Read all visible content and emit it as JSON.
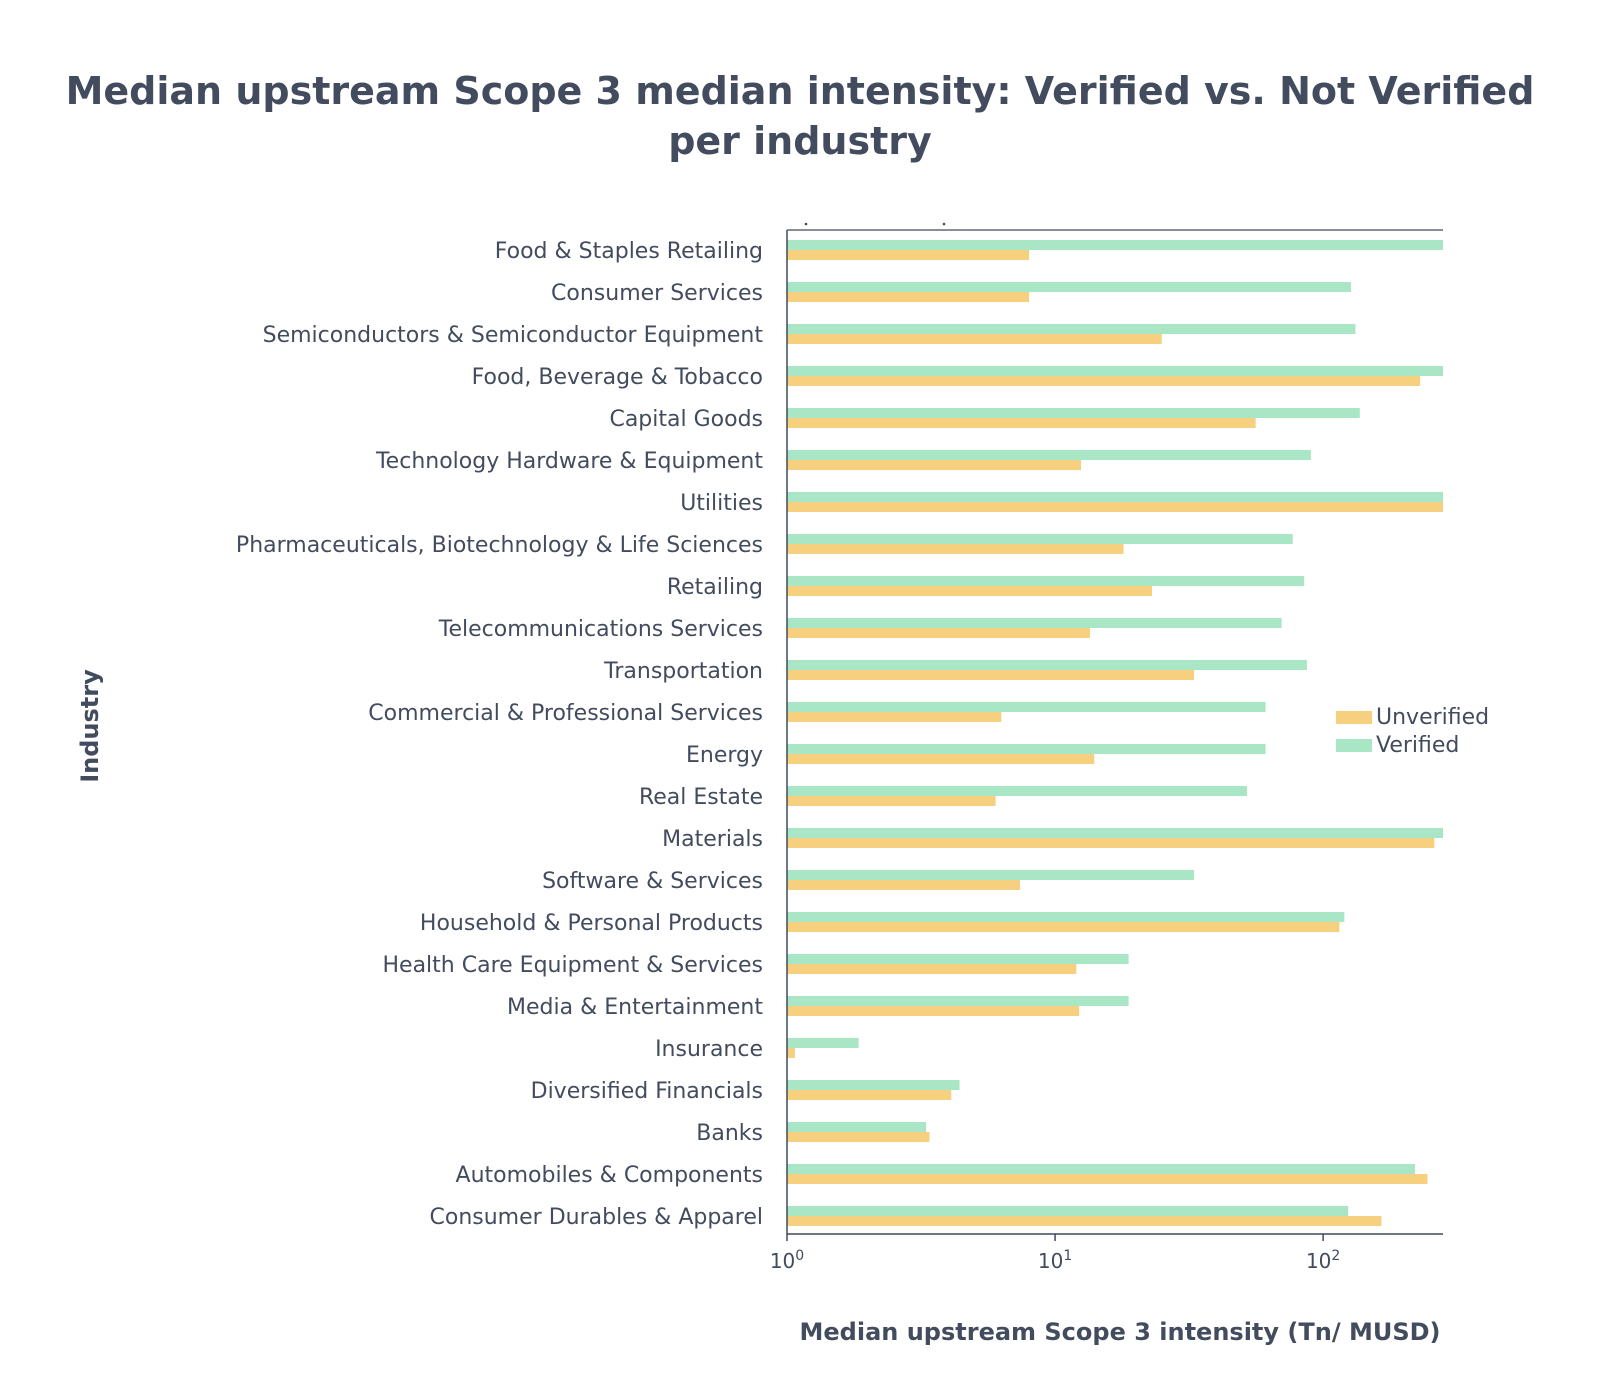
{
  "chart_data": {
    "type": "bar",
    "orientation": "horizontal",
    "title": "Median upstream Scope 3 median intensity: Verified vs. Not Verified per industry",
    "title_lines": [
      "Median upstream Scope 3 median intensity: Verified vs. Not Verified",
      "per industry"
    ],
    "xlabel": "Median upstream Scope 3 intensity (Tn/ MUSD)",
    "ylabel": "Industry",
    "x_scale": "log",
    "xlim": [
      1,
      280
    ],
    "x_ticks": [
      {
        "value": 1,
        "base": "10",
        "exp": "0"
      },
      {
        "value": 10,
        "base": "10",
        "exp": "1"
      },
      {
        "value": 100,
        "base": "10",
        "exp": "2"
      }
    ],
    "legend_position": "right",
    "categories": [
      "Food & Staples Retailing",
      "Consumer Services",
      "Semiconductors & Semiconductor Equipment",
      "Food, Beverage & Tobacco",
      "Capital Goods",
      "Technology Hardware & Equipment",
      "Utilities",
      "Pharmaceuticals, Biotechnology & Life Sciences",
      "Retailing",
      "Telecommunications Services",
      "Transportation",
      "Commercial & Professional Services",
      "Energy",
      "Real Estate",
      "Materials",
      "Software & Services",
      "Household & Personal Products",
      "Health Care Equipment & Services",
      "Media & Entertainment",
      "Insurance",
      "Diversified Financials",
      "Banks",
      "Automobiles & Components",
      "Consumer Durables & Apparel"
    ],
    "series": [
      {
        "name": "Unverified",
        "color": "#f6cf7f",
        "values": [
          8,
          8,
          25,
          230,
          56,
          12.5,
          280,
          18,
          23,
          13.5,
          33,
          6.3,
          14,
          6,
          260,
          7.4,
          115,
          12,
          12.3,
          1.07,
          4.1,
          3.4,
          245,
          165
        ]
      },
      {
        "name": "Verified",
        "color": "#a8e6c5",
        "values": [
          280,
          127,
          132,
          280,
          137,
          90,
          280,
          77,
          85,
          70,
          87,
          61,
          61,
          52,
          280,
          33,
          120,
          18.8,
          18.8,
          1.85,
          4.4,
          3.3,
          220,
          124
        ]
      }
    ],
    "legend_order": [
      "Unverified",
      "Verified"
    ]
  }
}
